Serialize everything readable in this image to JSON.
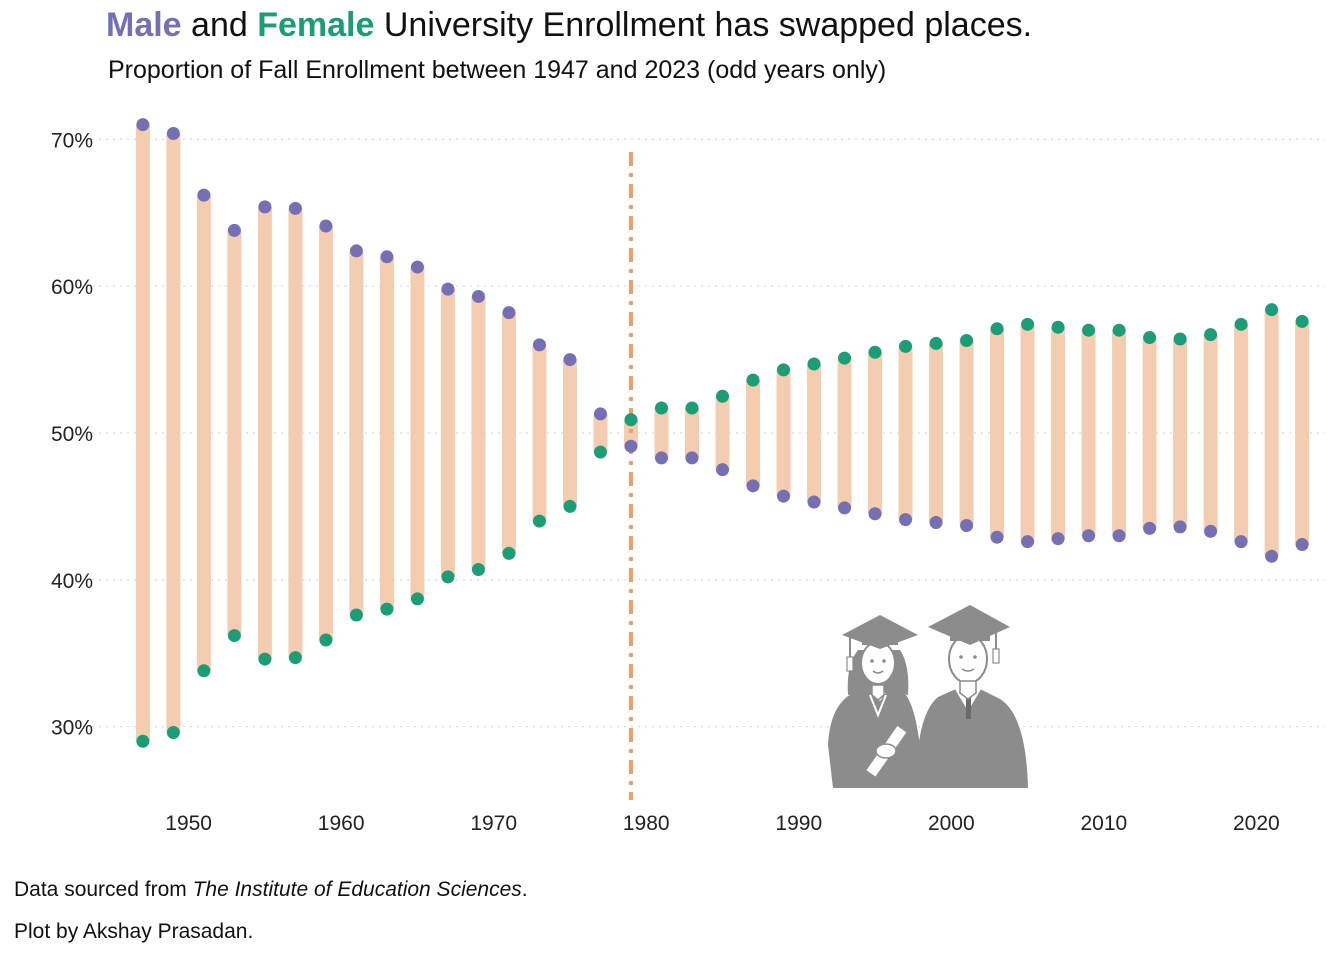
{
  "title": {
    "male_word": "Male",
    "mid_word": " and ",
    "female_word": "Female",
    "rest": " University Enrollment has swapped places."
  },
  "subtitle": "Proportion of Fall Enrollment between 1947 and 2023 (odd years only)",
  "caption": {
    "data_prefix": "Data sourced from ",
    "data_source": "The Institute of Education Sciences",
    "data_suffix": ".",
    "author_line": "Plot by Akshay Prasadan."
  },
  "colors": {
    "male": "#7570b3",
    "female": "#1b9e77",
    "segment": "#f4cdb0",
    "crossover_line": "#eba06a",
    "grid": "#d9d9d9",
    "illustration": "#8c8c8c"
  },
  "illustration_icon": "graduates-icon",
  "chart_data": {
    "type": "dumbbell",
    "x_ticks": [
      1950,
      1960,
      1970,
      1980,
      1990,
      2000,
      2010,
      2020
    ],
    "y_ticks": [
      30,
      40,
      50,
      60,
      70
    ],
    "y_tick_labels": [
      "30%",
      "40%",
      "50%",
      "60%",
      "70%"
    ],
    "xlim": [
      1945.5,
      2024.5
    ],
    "ylim": [
      25,
      72
    ],
    "grid": "horizontal, dotted",
    "crossover_year": 1979,
    "years": [
      1947,
      1949,
      1951,
      1953,
      1955,
      1957,
      1959,
      1961,
      1963,
      1965,
      1967,
      1969,
      1971,
      1973,
      1975,
      1977,
      1979,
      1981,
      1983,
      1985,
      1987,
      1989,
      1991,
      1993,
      1995,
      1997,
      1999,
      2001,
      2003,
      2005,
      2007,
      2009,
      2011,
      2013,
      2015,
      2017,
      2019,
      2021,
      2023
    ],
    "series": [
      {
        "name": "Male",
        "values": [
          71.0,
          70.4,
          66.2,
          63.8,
          65.4,
          65.3,
          64.1,
          62.4,
          62.0,
          61.3,
          59.8,
          59.3,
          58.2,
          56.0,
          55.0,
          51.3,
          49.1,
          48.3,
          48.3,
          47.5,
          46.4,
          45.7,
          45.3,
          44.9,
          44.5,
          44.1,
          43.9,
          43.7,
          42.9,
          42.6,
          42.8,
          43.0,
          43.0,
          43.5,
          43.6,
          43.3,
          42.6,
          41.6,
          42.4
        ]
      },
      {
        "name": "Female",
        "values": [
          29.0,
          29.6,
          33.8,
          36.2,
          34.6,
          34.7,
          35.9,
          37.6,
          38.0,
          38.7,
          40.2,
          40.7,
          41.8,
          44.0,
          45.0,
          48.7,
          50.9,
          51.7,
          51.7,
          52.5,
          53.6,
          54.3,
          54.7,
          55.1,
          55.5,
          55.9,
          56.1,
          56.3,
          57.1,
          57.4,
          57.2,
          57.0,
          57.0,
          56.5,
          56.4,
          56.7,
          57.4,
          58.4,
          57.6
        ]
      }
    ]
  }
}
